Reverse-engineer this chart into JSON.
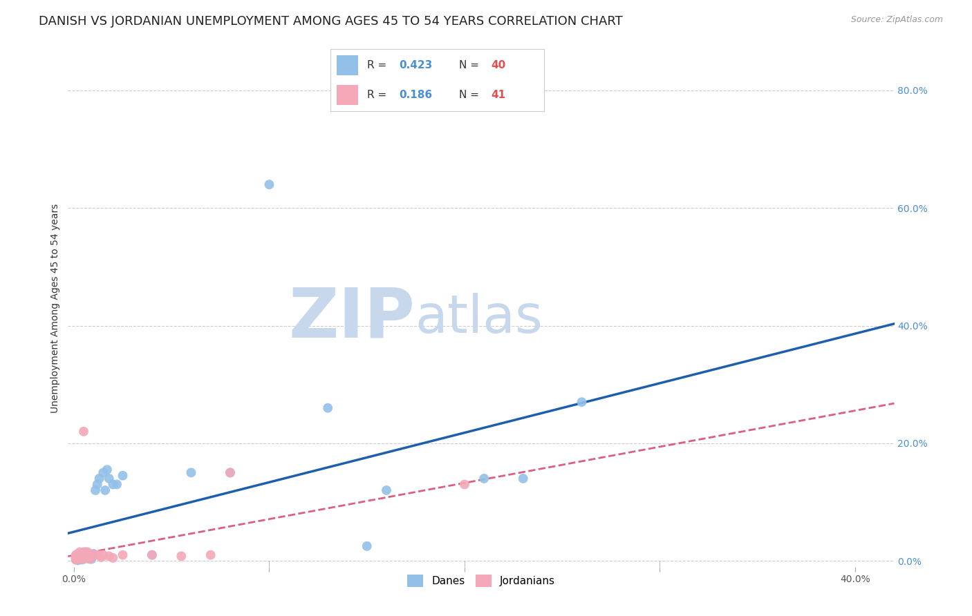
{
  "title": "DANISH VS JORDANIAN UNEMPLOYMENT AMONG AGES 45 TO 54 YEARS CORRELATION CHART",
  "source": "Source: ZipAtlas.com",
  "ylabel": "Unemployment Among Ages 45 to 54 years",
  "xlim": [
    -0.003,
    0.42
  ],
  "ylim": [
    -0.01,
    0.87
  ],
  "danes_color": "#92C0E8",
  "jordanians_color": "#F4A8B8",
  "danes_line_color": "#1E5FAD",
  "jordanians_line_color": "#D96080",
  "danes_R": 0.423,
  "danes_N": 40,
  "jordanians_R": 0.186,
  "jordanians_N": 41,
  "danes_x": [
    0.001,
    0.001,
    0.002,
    0.002,
    0.002,
    0.003,
    0.003,
    0.003,
    0.004,
    0.004,
    0.004,
    0.005,
    0.005,
    0.006,
    0.006,
    0.007,
    0.007,
    0.008,
    0.009,
    0.01,
    0.011,
    0.012,
    0.013,
    0.015,
    0.016,
    0.017,
    0.018,
    0.02,
    0.022,
    0.025,
    0.04,
    0.06,
    0.08,
    0.1,
    0.13,
    0.15,
    0.16,
    0.21,
    0.23,
    0.26
  ],
  "danes_y": [
    0.005,
    0.002,
    0.003,
    0.008,
    0.001,
    0.004,
    0.007,
    0.01,
    0.002,
    0.006,
    0.012,
    0.003,
    0.008,
    0.005,
    0.015,
    0.004,
    0.01,
    0.008,
    0.003,
    0.012,
    0.12,
    0.13,
    0.14,
    0.15,
    0.12,
    0.155,
    0.14,
    0.13,
    0.13,
    0.145,
    0.01,
    0.15,
    0.15,
    0.64,
    0.26,
    0.025,
    0.12,
    0.14,
    0.14,
    0.27
  ],
  "jordanians_x": [
    0.001,
    0.001,
    0.001,
    0.001,
    0.002,
    0.002,
    0.002,
    0.002,
    0.003,
    0.003,
    0.003,
    0.003,
    0.004,
    0.004,
    0.004,
    0.004,
    0.005,
    0.005,
    0.005,
    0.005,
    0.006,
    0.006,
    0.007,
    0.007,
    0.008,
    0.008,
    0.009,
    0.01,
    0.011,
    0.013,
    0.014,
    0.015,
    0.018,
    0.02,
    0.025,
    0.04,
    0.055,
    0.07,
    0.08,
    0.2,
    0.005
  ],
  "jordanians_y": [
    0.005,
    0.008,
    0.002,
    0.01,
    0.003,
    0.006,
    0.012,
    0.008,
    0.004,
    0.01,
    0.007,
    0.015,
    0.005,
    0.012,
    0.003,
    0.008,
    0.004,
    0.01,
    0.007,
    0.015,
    0.005,
    0.012,
    0.008,
    0.015,
    0.003,
    0.01,
    0.007,
    0.01,
    0.01,
    0.01,
    0.006,
    0.01,
    0.008,
    0.005,
    0.01,
    0.01,
    0.008,
    0.01,
    0.15,
    0.13,
    0.22
  ],
  "ytick_vals": [
    0.0,
    0.2,
    0.4,
    0.6,
    0.8
  ],
  "ytick_labels": [
    "0.0%",
    "20.0%",
    "40.0%",
    "60.0%",
    "80.0%"
  ],
  "xtick_vals": [
    0.0,
    0.1,
    0.2,
    0.3,
    0.4
  ],
  "xtick_labels_show": [
    "0.0%",
    "",
    "",
    "",
    "40.0%"
  ],
  "xtick_minor": [
    0.1,
    0.2,
    0.3
  ],
  "background_color": "#ffffff",
  "grid_color": "#cccccc",
  "watermark_zip": "ZIP",
  "watermark_atlas": "atlas",
  "watermark_color_zip": "#c8d8ec",
  "watermark_color_atlas": "#c8d8ec",
  "title_fontsize": 13,
  "axis_label_fontsize": 10,
  "tick_fontsize": 10,
  "source_fontsize": 9,
  "right_tick_color": "#4a8fd4",
  "legend_r_color": "#4a8fd4",
  "legend_n_color": "#e05050"
}
